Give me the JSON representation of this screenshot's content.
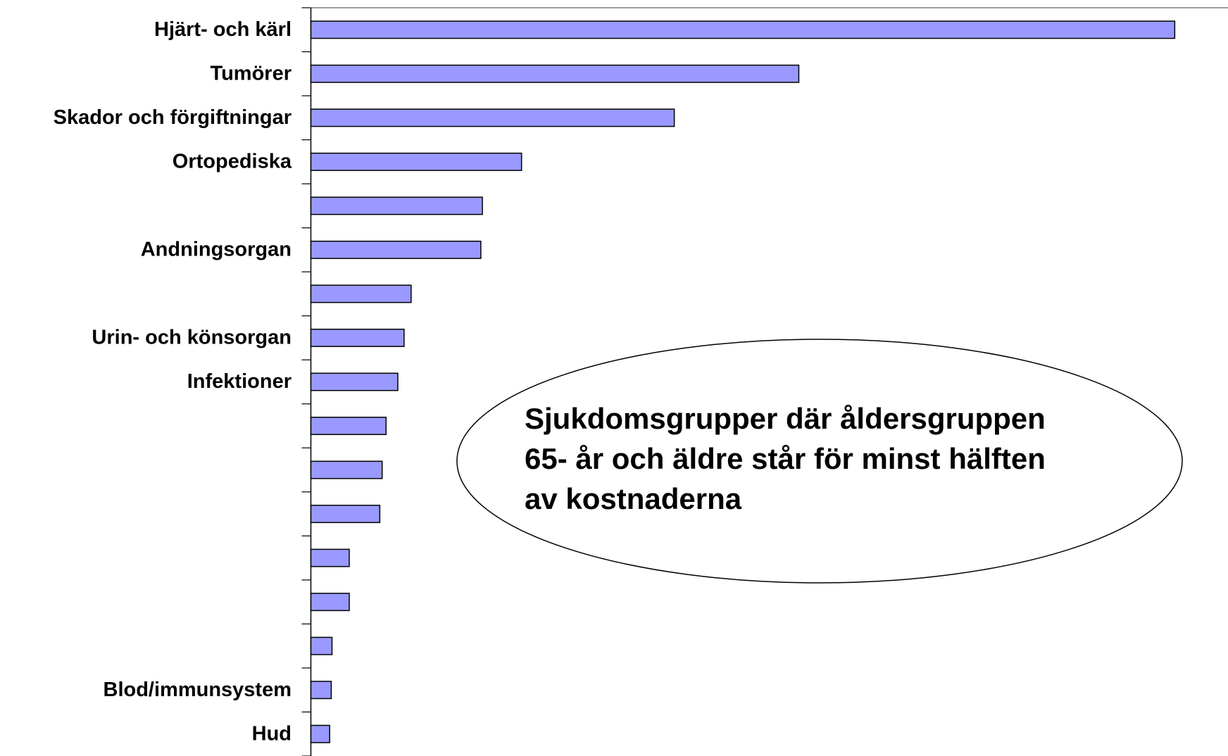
{
  "chart_data": {
    "type": "bar",
    "orientation": "horizontal",
    "categories": [
      "Hjärt- och kärl",
      "Tumörer",
      "Skador och förgiftningar",
      "Ortopediska",
      null,
      "Andningsorgan",
      null,
      "Urin- och könsorgan",
      "Infektioner",
      null,
      null,
      null,
      null,
      null,
      null,
      "Blod/immunsystem",
      "Hud"
    ],
    "values": [
      1103,
      623,
      464,
      269,
      219,
      217,
      128,
      119,
      111,
      96,
      91,
      88,
      49,
      49,
      27,
      26,
      24
    ],
    "color": "#9999ff",
    "xlim": [
      0,
      1171
    ],
    "annotation": [
      "Sjukdomsgrupper där åldersgruppen",
      "65- år och äldre står för minst hälften",
      "av kostnaderna"
    ]
  }
}
